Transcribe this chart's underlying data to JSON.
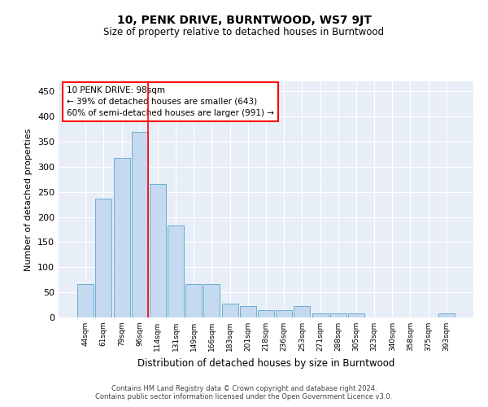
{
  "title": "10, PENK DRIVE, BURNTWOOD, WS7 9JT",
  "subtitle": "Size of property relative to detached houses in Burntwood",
  "xlabel": "Distribution of detached houses by size in Burntwood",
  "ylabel": "Number of detached properties",
  "categories": [
    "44sqm",
    "61sqm",
    "79sqm",
    "96sqm",
    "114sqm",
    "131sqm",
    "149sqm",
    "166sqm",
    "183sqm",
    "201sqm",
    "218sqm",
    "236sqm",
    "253sqm",
    "271sqm",
    "288sqm",
    "305sqm",
    "323sqm",
    "340sqm",
    "358sqm",
    "375sqm",
    "393sqm"
  ],
  "values": [
    66,
    236,
    318,
    370,
    265,
    183,
    66,
    66,
    28,
    22,
    15,
    15,
    22,
    8,
    8,
    8,
    0,
    0,
    0,
    0,
    8
  ],
  "bar_color": "#c5d9f0",
  "bar_edge_color": "#6baed6",
  "annotation_line1": "10 PENK DRIVE: 98sqm",
  "annotation_line2": "← 39% of detached houses are smaller (643)",
  "annotation_line3": "60% of semi-detached houses are larger (991) →",
  "annotation_box_color": "white",
  "annotation_box_edge_color": "red",
  "ylim": [
    0,
    470
  ],
  "yticks": [
    0,
    50,
    100,
    150,
    200,
    250,
    300,
    350,
    400,
    450
  ],
  "bg_color": "#e8eef7",
  "grid_color": "white",
  "footer": "Contains HM Land Registry data © Crown copyright and database right 2024.\nContains public sector information licensed under the Open Government Licence v3.0."
}
